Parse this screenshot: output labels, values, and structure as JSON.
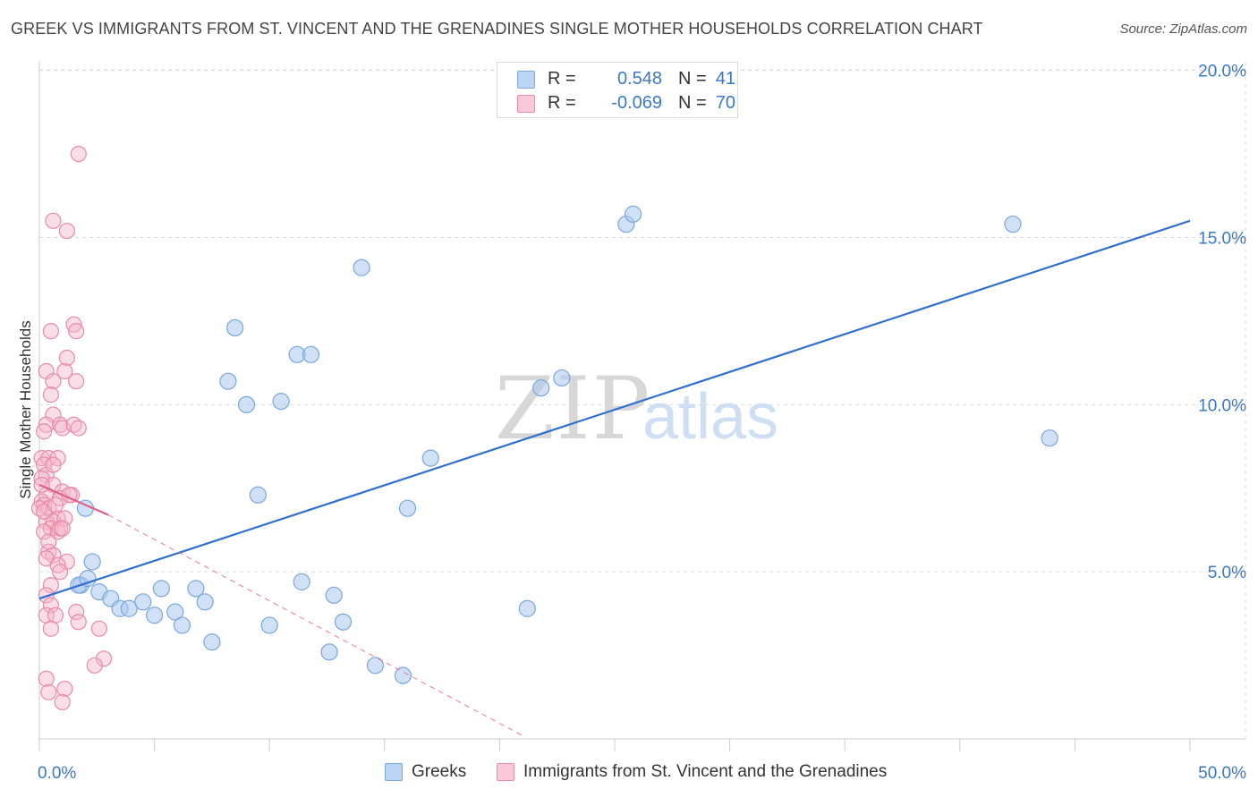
{
  "title": "GREEK VS IMMIGRANTS FROM ST. VINCENT AND THE GRENADINES SINGLE MOTHER HOUSEHOLDS CORRELATION CHART",
  "source": "Source: ZipAtlas.com",
  "watermark": {
    "zip": "ZIP",
    "atlas": "atlas"
  },
  "colors": {
    "blue_fill": "#a9c9ef",
    "blue_stroke": "#7aa6dc",
    "blue_line": "#2f6fcf",
    "pink_fill": "#f5b6c9",
    "pink_stroke": "#e88aa8",
    "pink_line": "#e0608a",
    "axis_text": "#3a78c9",
    "grid": "#dddddd"
  },
  "legend": {
    "rows": [
      {
        "r_label": "R =",
        "r_value": "0.548",
        "n_label": "N =",
        "n_value": "41"
      },
      {
        "r_label": "R =",
        "r_value": "-0.069",
        "n_label": "N =",
        "n_value": "70"
      }
    ]
  },
  "bottom_legend": {
    "greeks": "Greeks",
    "immigrants": "Immigrants from St. Vincent and the Grenadines"
  },
  "chart_data": {
    "type": "scatter",
    "title": "GREEK VS IMMIGRANTS FROM ST. VINCENT AND THE GRENADINES SINGLE MOTHER HOUSEHOLDS CORRELATION CHART",
    "xlabel": "",
    "ylabel": "Single Mother Households",
    "xlim": [
      0,
      50
    ],
    "ylim": [
      0,
      20.5
    ],
    "x_tick_labels": [
      "0.0%",
      "50.0%"
    ],
    "y_ticks": [
      5,
      10,
      15,
      20
    ],
    "y_tick_labels": [
      "5.0%",
      "10.0%",
      "15.0%",
      "20.0%"
    ],
    "grid": true,
    "legend_position": "top-center",
    "series": [
      {
        "name": "Greeks",
        "r": 0.548,
        "n": 41,
        "trend": {
          "x0": 0,
          "y0": 4.2,
          "x1": 50,
          "y1": 15.5
        },
        "points": [
          [
            2.3,
            5.3
          ],
          [
            1.8,
            4.6
          ],
          [
            1.7,
            4.6
          ],
          [
            2.1,
            4.8
          ],
          [
            2.6,
            4.4
          ],
          [
            3.1,
            4.2
          ],
          [
            3.5,
            3.9
          ],
          [
            3.9,
            3.9
          ],
          [
            4.5,
            4.1
          ],
          [
            5.0,
            3.7
          ],
          [
            5.3,
            4.5
          ],
          [
            5.9,
            3.8
          ],
          [
            6.2,
            3.4
          ],
          [
            6.8,
            4.5
          ],
          [
            7.2,
            4.1
          ],
          [
            7.5,
            2.9
          ],
          [
            8.2,
            10.7
          ],
          [
            8.5,
            12.3
          ],
          [
            9.0,
            10.0
          ],
          [
            9.5,
            7.3
          ],
          [
            10.0,
            3.4
          ],
          [
            10.5,
            10.1
          ],
          [
            11.2,
            11.5
          ],
          [
            11.4,
            4.7
          ],
          [
            11.8,
            11.5
          ],
          [
            12.6,
            2.6
          ],
          [
            12.8,
            4.3
          ],
          [
            13.2,
            3.5
          ],
          [
            14.0,
            14.1
          ],
          [
            14.6,
            2.2
          ],
          [
            15.8,
            1.9
          ],
          [
            16.0,
            6.9
          ],
          [
            17.0,
            8.4
          ],
          [
            21.2,
            3.9
          ],
          [
            21.8,
            10.5
          ],
          [
            22.7,
            10.8
          ],
          [
            25.5,
            15.4
          ],
          [
            25.8,
            15.7
          ],
          [
            42.3,
            15.4
          ],
          [
            43.9,
            9.0
          ],
          [
            2.0,
            6.9
          ]
        ]
      },
      {
        "name": "Immigrants from St. Vincent and the Grenadines",
        "r": -0.069,
        "n": 70,
        "trend": {
          "x0": 0,
          "y0": 7.6,
          "x1": 3.0,
          "y1": 6.7
        },
        "trend_dashed": {
          "x0": 3.0,
          "y0": 6.7,
          "x1": 21.0,
          "y1": 0.1
        },
        "points": [
          [
            1.7,
            17.5
          ],
          [
            0.6,
            15.5
          ],
          [
            1.2,
            15.2
          ],
          [
            0.5,
            12.2
          ],
          [
            1.5,
            12.4
          ],
          [
            1.6,
            12.2
          ],
          [
            1.2,
            11.4
          ],
          [
            0.3,
            11.0
          ],
          [
            1.1,
            11.0
          ],
          [
            0.6,
            10.7
          ],
          [
            1.6,
            10.7
          ],
          [
            0.5,
            10.3
          ],
          [
            0.6,
            9.7
          ],
          [
            0.3,
            9.4
          ],
          [
            0.9,
            9.4
          ],
          [
            1.0,
            9.3
          ],
          [
            1.5,
            9.4
          ],
          [
            1.7,
            9.3
          ],
          [
            0.2,
            9.2
          ],
          [
            0.1,
            8.4
          ],
          [
            0.4,
            8.4
          ],
          [
            0.8,
            8.4
          ],
          [
            0.2,
            8.2
          ],
          [
            0.3,
            7.9
          ],
          [
            0.1,
            7.8
          ],
          [
            0.6,
            7.6
          ],
          [
            1.0,
            7.4
          ],
          [
            1.4,
            7.3
          ],
          [
            0.3,
            7.3
          ],
          [
            0.1,
            7.1
          ],
          [
            0.9,
            7.2
          ],
          [
            0.2,
            7.0
          ],
          [
            0.4,
            6.9
          ],
          [
            0.0,
            6.9
          ],
          [
            0.8,
            6.6
          ],
          [
            0.3,
            6.5
          ],
          [
            0.6,
            6.5
          ],
          [
            1.1,
            6.6
          ],
          [
            0.5,
            6.3
          ],
          [
            0.2,
            6.2
          ],
          [
            0.8,
            6.2
          ],
          [
            0.9,
            6.3
          ],
          [
            1.0,
            6.3
          ],
          [
            0.4,
            5.6
          ],
          [
            0.6,
            5.5
          ],
          [
            0.3,
            5.4
          ],
          [
            1.2,
            5.3
          ],
          [
            0.8,
            5.2
          ],
          [
            0.9,
            5.0
          ],
          [
            0.5,
            4.6
          ],
          [
            0.3,
            4.3
          ],
          [
            0.5,
            4.0
          ],
          [
            1.6,
            3.8
          ],
          [
            0.3,
            3.7
          ],
          [
            0.7,
            3.7
          ],
          [
            1.7,
            3.5
          ],
          [
            0.5,
            3.3
          ],
          [
            2.6,
            3.3
          ],
          [
            2.8,
            2.4
          ],
          [
            2.4,
            2.2
          ],
          [
            0.3,
            1.8
          ],
          [
            0.4,
            1.4
          ],
          [
            1.1,
            1.5
          ],
          [
            1.0,
            1.1
          ],
          [
            0.1,
            7.6
          ],
          [
            0.2,
            6.8
          ],
          [
            1.3,
            7.3
          ],
          [
            0.4,
            5.9
          ],
          [
            0.6,
            8.2
          ],
          [
            0.7,
            7.0
          ]
        ]
      }
    ]
  }
}
